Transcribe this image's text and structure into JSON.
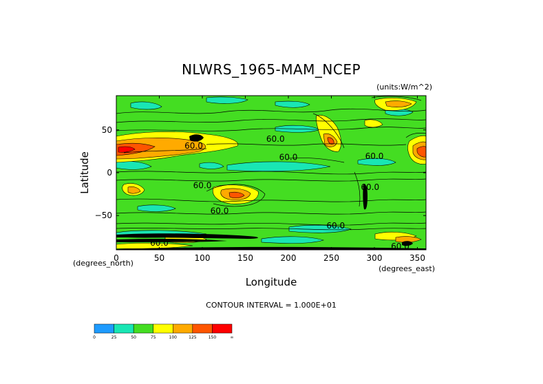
{
  "chart_data": {
    "type": "heatmap",
    "title": "NLWRS_1965-MAM_NCEP",
    "units": "(units:W/m^2)",
    "xlabel": "Longitude",
    "ylabel": "Latitude",
    "x_unit_label": "(degrees_east)",
    "y_unit_label": "(degrees_north)",
    "xlim": [
      0,
      360
    ],
    "ylim": [
      -90,
      90
    ],
    "x_ticks": [
      0,
      50,
      100,
      150,
      200,
      250,
      300,
      350
    ],
    "y_ticks": [
      50,
      0,
      -50
    ],
    "y_tick_labels": [
      "50",
      "0",
      "−50"
    ],
    "contour_interval_text": "CONTOUR INTERVAL = 1.000E+01",
    "contour_label": "60.0",
    "contour_labels": [
      {
        "text": "60.0",
        "lon": 90,
        "lat": 28
      },
      {
        "text": "60.0",
        "lon": 185,
        "lat": 36
      },
      {
        "text": "60.0",
        "lon": 200,
        "lat": 15
      },
      {
        "text": "60.0",
        "lon": 300,
        "lat": 16
      },
      {
        "text": "60.0",
        "lon": 100,
        "lat": -18
      },
      {
        "text": "60.0",
        "lon": 120,
        "lat": -48
      },
      {
        "text": "60.0",
        "lon": 255,
        "lat": -65
      },
      {
        "text": "60.0",
        "lon": 295,
        "lat": -20
      },
      {
        "text": "60.0",
        "lon": 50,
        "lat": -85
      },
      {
        "text": "60.0",
        "lon": 330,
        "lat": -89
      }
    ],
    "colorbar": {
      "levels": [
        "0",
        "25",
        "50",
        "75",
        "100",
        "125",
        "150",
        "∞"
      ],
      "colors": [
        "#1e9bff",
        "#19e6b4",
        "#44dd22",
        "#ffff00",
        "#ffaa00",
        "#ff5500",
        "#ff0000"
      ]
    },
    "grid": false
  }
}
